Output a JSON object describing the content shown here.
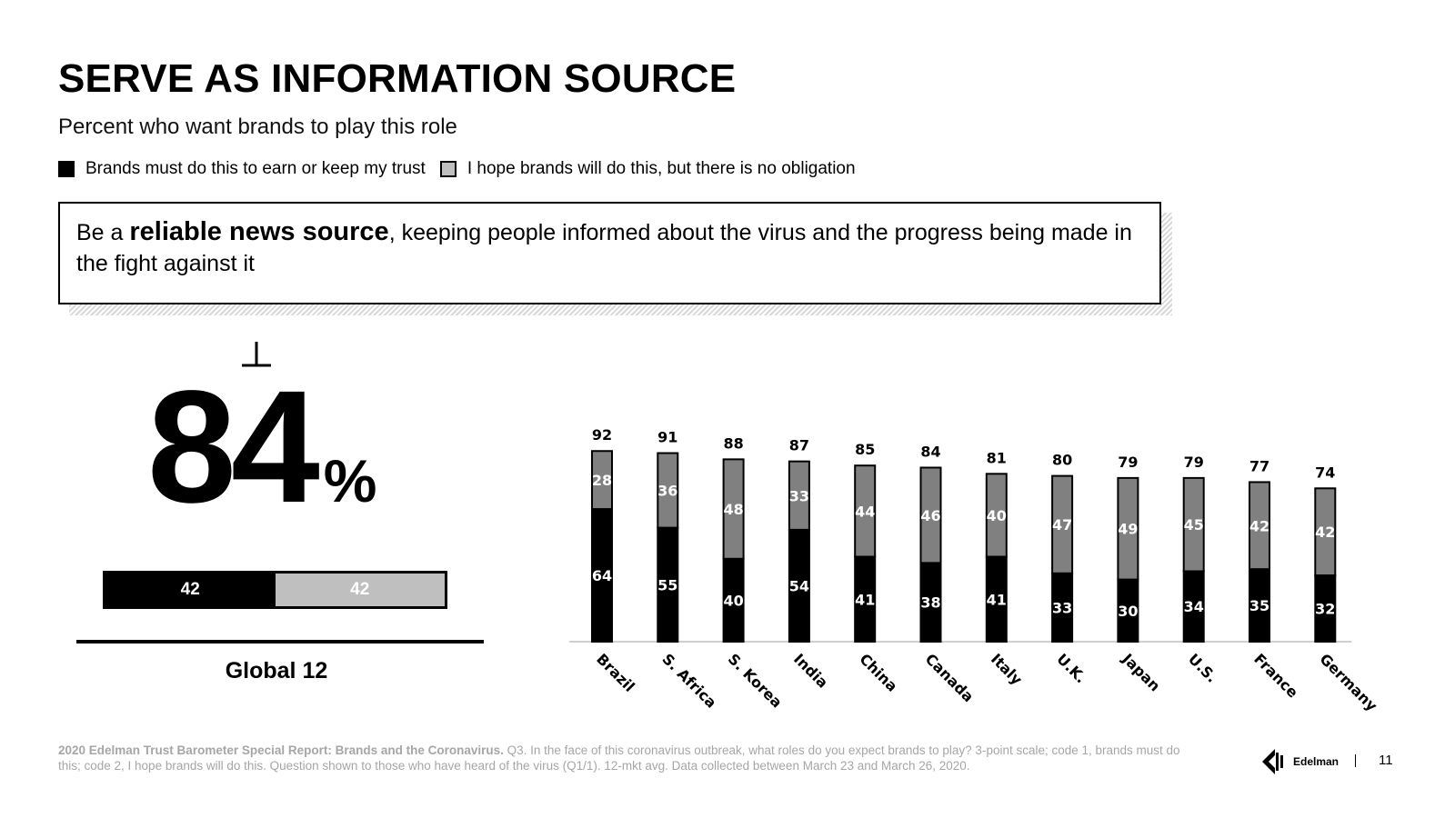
{
  "header": {
    "title": "SERVE AS INFORMATION SOURCE",
    "subtitle": "Percent who want brands to play this role"
  },
  "legend": {
    "must": "Brands must do this to earn or keep my trust",
    "hope": "I hope brands will do this, but there is no obligation"
  },
  "callout": {
    "prefix": "Be a ",
    "bold": "reliable news source",
    "suffix": ", keeping people informed about the virus and the progress being made in the fight against it"
  },
  "global": {
    "total": "84",
    "percent_sign": "%",
    "must": 42,
    "hope": 42,
    "label": "Global 12"
  },
  "chart_data": {
    "type": "bar",
    "stacked": true,
    "categories": [
      "Brazil",
      "S. Africa",
      "S. Korea",
      "India",
      "China",
      "Canada",
      "Italy",
      "U.K.",
      "Japan",
      "U.S.",
      "France",
      "Germany"
    ],
    "series": [
      {
        "name": "Brands must do this to earn or keep my trust",
        "color": "#000000",
        "values": [
          64,
          55,
          40,
          54,
          41,
          38,
          41,
          33,
          30,
          34,
          35,
          32
        ]
      },
      {
        "name": "I hope brands will do this, but there is no obligation",
        "color": "#808080",
        "values": [
          28,
          36,
          48,
          33,
          44,
          46,
          40,
          47,
          49,
          45,
          42,
          42
        ]
      }
    ],
    "totals": [
      92,
      91,
      88,
      87,
      85,
      84,
      81,
      80,
      79,
      79,
      77,
      74
    ],
    "ylim": [
      0,
      100
    ],
    "grid": false,
    "legend_position": "top-left"
  },
  "footer": {
    "source_bold": "2020 Edelman Trust Barometer Special Report: Brands and the Coronavirus.",
    "source_text": " Q3. In the face of this coronavirus outbreak, what roles do you expect brands to play? 3-point scale; code 1, brands must do this; code 2, I hope brands will do this. Question shown to those who have heard of the virus (Q1/1). 12-mkt avg. Data collected between March 23 and March 26, 2020.",
    "logo": "Edelman",
    "page_number": "11"
  }
}
